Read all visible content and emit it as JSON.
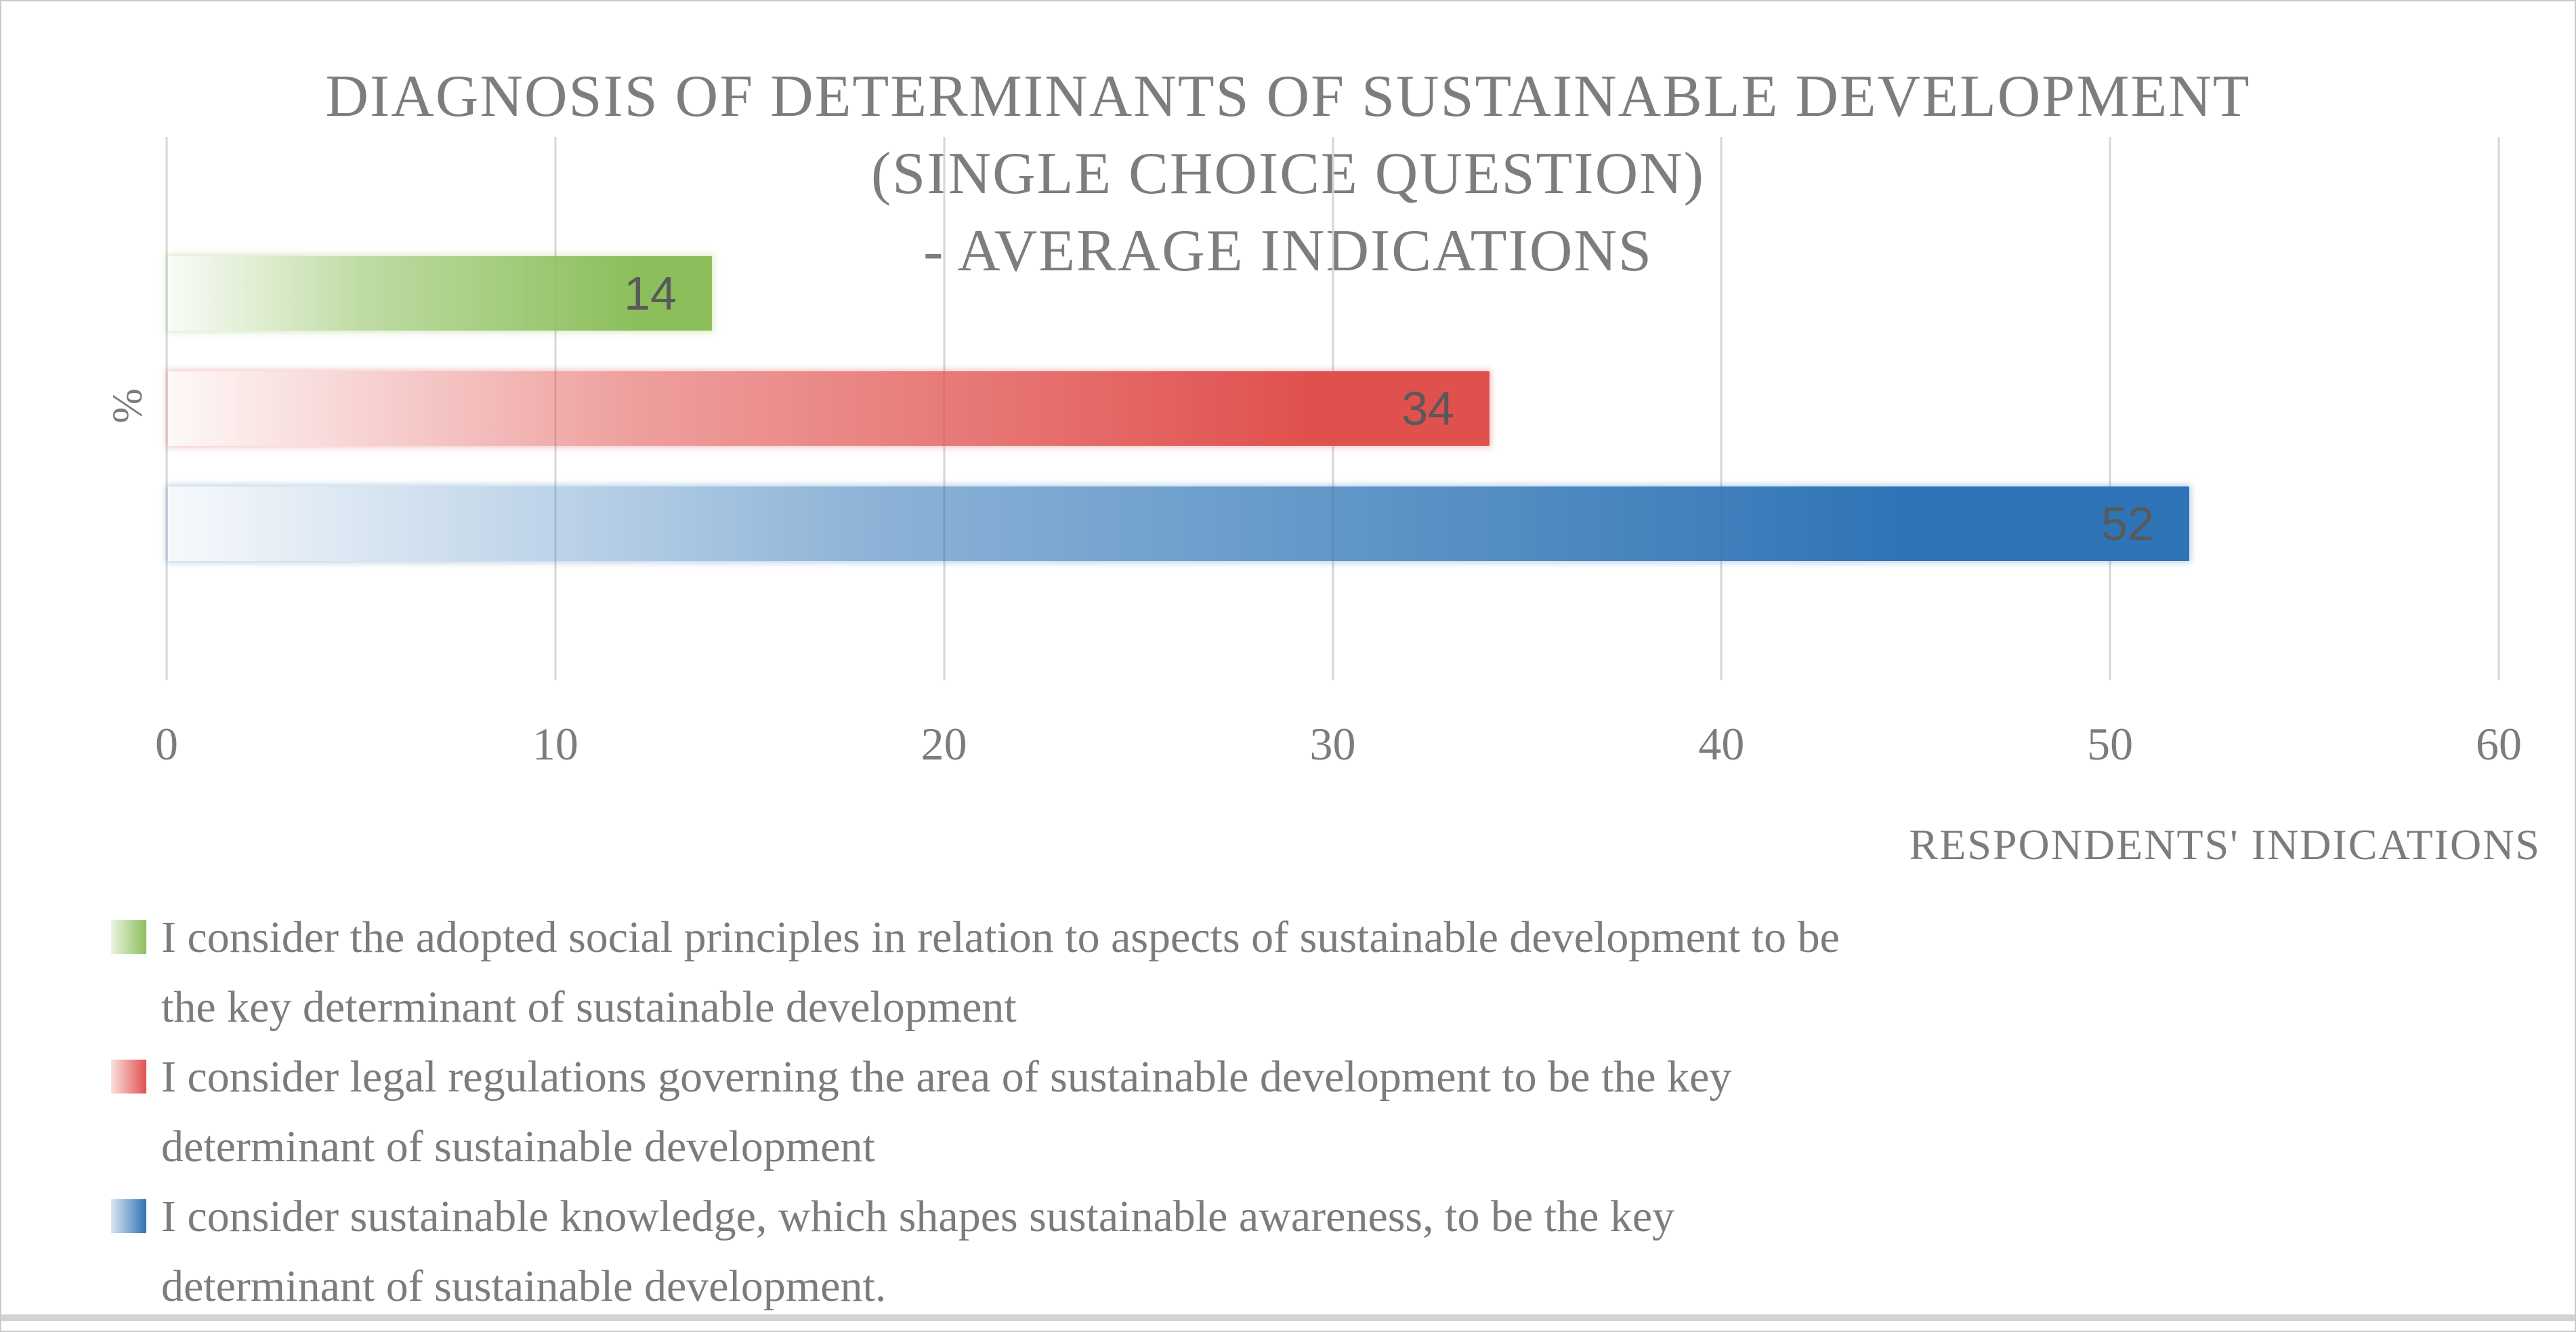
{
  "chart_data": {
    "type": "bar",
    "orientation": "horizontal",
    "title": "DIAGNOSIS OF DETERMINANTS OF SUSTAINABLE DEVELOPMENT (SINGLE CHOICE QUESTION) - AVERAGE INDICATIONS",
    "title_lines": [
      "DIAGNOSIS OF DETERMINANTS OF SUSTAINABLE DEVELOPMENT",
      "(SINGLE CHOICE QUESTION)",
      "- AVERAGE INDICATIONS"
    ],
    "xlabel": "RESPONDENTS' INDICATIONS",
    "ylabel": "%",
    "xlim": [
      0,
      60
    ],
    "xticks": [
      0,
      10,
      20,
      30,
      40,
      50,
      60
    ],
    "grid": true,
    "legend_position": "bottom",
    "bar_fill_style": "gradient from white at bar base to full color at bar end",
    "data_labels": {
      "position": "inside-end",
      "color": "#595959"
    },
    "series": [
      {
        "label": "I consider the adopted social principles in relation to aspects of sustainable development to be the key determinant of sustainable development",
        "label_lines": [
          "I consider the adopted social principles in relation to aspects of sustainable development to be",
          "the key determinant of sustainable development"
        ],
        "value": 14,
        "color": "#8CBF5B"
      },
      {
        "label": "I consider legal regulations governing the area of sustainable development to be the key determinant of sustainable development",
        "label_lines": [
          "I consider legal regulations governing the area of sustainable development to be the key",
          "determinant of sustainable development"
        ],
        "value": 34,
        "color": "#E0514E"
      },
      {
        "label": "I consider sustainable knowledge, which shapes sustainable awareness, to be the key determinant of sustainable development.",
        "label_lines": [
          "I consider sustainable knowledge, which shapes sustainable awareness, to be the key",
          "determinant of sustainable development."
        ],
        "value": 52,
        "color": "#2E74B6"
      }
    ],
    "colors": {
      "gridline": "#D6D6D6",
      "axis_text": "#7C7C7C",
      "title_text": "#7D7D7D",
      "data_label_text": "#595959"
    }
  }
}
